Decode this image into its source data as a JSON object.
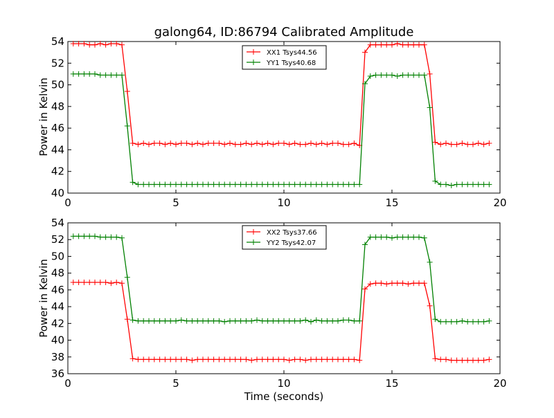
{
  "title": "galong64, ID:86794 Calibrated Amplitude",
  "colors": {
    "xx": "#ff0000",
    "yy": "#008000",
    "axes": "#000000"
  },
  "chart_data": [
    {
      "type": "line",
      "title": "galong64, ID:86794 Calibrated Amplitude",
      "xlabel": "",
      "ylabel": "Power in Kelvin",
      "xlim": [
        0,
        20
      ],
      "ylim": [
        40,
        54
      ],
      "xticks": [
        "0",
        "5",
        "10",
        "15",
        "20"
      ],
      "yticks": [
        "40",
        "42",
        "44",
        "46",
        "48",
        "50",
        "52",
        "54"
      ],
      "grid": false,
      "legend": "top-center",
      "x": [
        0.25,
        0.5,
        0.75,
        1.0,
        1.25,
        1.5,
        1.75,
        2.0,
        2.25,
        2.5,
        2.75,
        3.0,
        3.25,
        3.5,
        3.75,
        4.0,
        4.25,
        4.5,
        4.75,
        5.0,
        5.25,
        5.5,
        5.75,
        6.0,
        6.25,
        6.5,
        6.75,
        7.0,
        7.25,
        7.5,
        7.75,
        8.0,
        8.25,
        8.5,
        8.75,
        9.0,
        9.25,
        9.5,
        9.75,
        10.0,
        10.25,
        10.5,
        10.75,
        11.0,
        11.25,
        11.5,
        11.75,
        12.0,
        12.25,
        12.5,
        12.75,
        13.0,
        13.25,
        13.5,
        13.75,
        14.0,
        14.25,
        14.5,
        14.75,
        15.0,
        15.25,
        15.5,
        15.75,
        16.0,
        16.25,
        16.5,
        16.75,
        17.0,
        17.25,
        17.5,
        17.75,
        18.0,
        18.25,
        18.5,
        18.75,
        19.0,
        19.25,
        19.5
      ],
      "series": [
        {
          "name": "XX1 Tsys44.56",
          "color": "#ff0000",
          "values": [
            53.8,
            53.8,
            53.8,
            53.7,
            53.7,
            53.8,
            53.7,
            53.8,
            53.8,
            53.7,
            49.4,
            44.6,
            44.5,
            44.6,
            44.5,
            44.6,
            44.6,
            44.5,
            44.6,
            44.5,
            44.6,
            44.6,
            44.5,
            44.6,
            44.5,
            44.6,
            44.6,
            44.6,
            44.5,
            44.6,
            44.5,
            44.5,
            44.6,
            44.5,
            44.6,
            44.5,
            44.6,
            44.5,
            44.6,
            44.6,
            44.5,
            44.6,
            44.5,
            44.5,
            44.6,
            44.5,
            44.6,
            44.5,
            44.6,
            44.6,
            44.5,
            44.5,
            44.6,
            44.4,
            53.0,
            53.7,
            53.7,
            53.7,
            53.7,
            53.7,
            53.8,
            53.7,
            53.7,
            53.7,
            53.7,
            53.7,
            51.0,
            44.7,
            44.5,
            44.6,
            44.5,
            44.5,
            44.6,
            44.5,
            44.5,
            44.6,
            44.5,
            44.6
          ]
        },
        {
          "name": "YY1 Tsys40.68",
          "color": "#008000",
          "values": [
            51.0,
            51.0,
            51.0,
            51.0,
            51.0,
            50.9,
            50.9,
            50.9,
            50.9,
            50.9,
            46.2,
            41.0,
            40.8,
            40.8,
            40.8,
            40.8,
            40.8,
            40.8,
            40.8,
            40.8,
            40.8,
            40.8,
            40.8,
            40.8,
            40.8,
            40.8,
            40.8,
            40.8,
            40.8,
            40.8,
            40.8,
            40.8,
            40.8,
            40.8,
            40.8,
            40.8,
            40.8,
            40.8,
            40.8,
            40.8,
            40.8,
            40.8,
            40.8,
            40.8,
            40.8,
            40.8,
            40.8,
            40.8,
            40.8,
            40.8,
            40.8,
            40.8,
            40.8,
            40.8,
            50.1,
            50.8,
            50.9,
            50.9,
            50.9,
            50.9,
            50.8,
            50.9,
            50.9,
            50.9,
            50.9,
            50.9,
            47.9,
            41.1,
            40.8,
            40.8,
            40.7,
            40.8,
            40.8,
            40.8,
            40.8,
            40.8,
            40.8,
            40.8
          ]
        }
      ]
    },
    {
      "type": "line",
      "title": "",
      "xlabel": "Time (seconds)",
      "ylabel": "Power in Kelvin",
      "xlim": [
        0,
        20
      ],
      "ylim": [
        36,
        54
      ],
      "xticks": [
        "0",
        "5",
        "10",
        "15",
        "20"
      ],
      "yticks": [
        "36",
        "38",
        "40",
        "42",
        "44",
        "46",
        "48",
        "50",
        "52",
        "54"
      ],
      "grid": false,
      "legend": "top-center",
      "x": [
        0.25,
        0.5,
        0.75,
        1.0,
        1.25,
        1.5,
        1.75,
        2.0,
        2.25,
        2.5,
        2.75,
        3.0,
        3.25,
        3.5,
        3.75,
        4.0,
        4.25,
        4.5,
        4.75,
        5.0,
        5.25,
        5.5,
        5.75,
        6.0,
        6.25,
        6.5,
        6.75,
        7.0,
        7.25,
        7.5,
        7.75,
        8.0,
        8.25,
        8.5,
        8.75,
        9.0,
        9.25,
        9.5,
        9.75,
        10.0,
        10.25,
        10.5,
        10.75,
        11.0,
        11.25,
        11.5,
        11.75,
        12.0,
        12.25,
        12.5,
        12.75,
        13.0,
        13.25,
        13.5,
        13.75,
        14.0,
        14.25,
        14.5,
        14.75,
        15.0,
        15.25,
        15.5,
        15.75,
        16.0,
        16.25,
        16.5,
        16.75,
        17.0,
        17.25,
        17.5,
        17.75,
        18.0,
        18.25,
        18.5,
        18.75,
        19.0,
        19.25,
        19.5
      ],
      "series": [
        {
          "name": "XX2 Tsys37.66",
          "color": "#ff0000",
          "values": [
            46.9,
            46.9,
            46.9,
            46.9,
            46.9,
            46.9,
            46.9,
            46.8,
            46.9,
            46.8,
            42.5,
            37.8,
            37.7,
            37.7,
            37.7,
            37.7,
            37.7,
            37.7,
            37.7,
            37.7,
            37.7,
            37.7,
            37.6,
            37.7,
            37.7,
            37.7,
            37.7,
            37.7,
            37.7,
            37.7,
            37.7,
            37.7,
            37.7,
            37.6,
            37.7,
            37.7,
            37.7,
            37.7,
            37.7,
            37.7,
            37.6,
            37.7,
            37.7,
            37.6,
            37.7,
            37.7,
            37.7,
            37.7,
            37.7,
            37.7,
            37.7,
            37.7,
            37.7,
            37.6,
            46.1,
            46.7,
            46.8,
            46.8,
            46.7,
            46.8,
            46.8,
            46.8,
            46.7,
            46.8,
            46.8,
            46.8,
            44.1,
            37.8,
            37.7,
            37.7,
            37.6,
            37.6,
            37.6,
            37.6,
            37.6,
            37.6,
            37.6,
            37.7
          ]
        },
        {
          "name": "YY2 Tsys42.07",
          "color": "#008000",
          "values": [
            52.4,
            52.4,
            52.4,
            52.4,
            52.4,
            52.3,
            52.3,
            52.3,
            52.3,
            52.2,
            47.5,
            42.4,
            42.3,
            42.3,
            42.3,
            42.3,
            42.3,
            42.3,
            42.3,
            42.3,
            42.4,
            42.3,
            42.3,
            42.3,
            42.3,
            42.3,
            42.3,
            42.3,
            42.2,
            42.3,
            42.3,
            42.3,
            42.3,
            42.3,
            42.4,
            42.3,
            42.3,
            42.3,
            42.3,
            42.3,
            42.3,
            42.3,
            42.3,
            42.4,
            42.2,
            42.4,
            42.3,
            42.3,
            42.3,
            42.3,
            42.4,
            42.4,
            42.3,
            42.3,
            51.4,
            52.3,
            52.3,
            52.3,
            52.3,
            52.2,
            52.3,
            52.3,
            52.3,
            52.3,
            52.3,
            52.2,
            49.3,
            42.5,
            42.2,
            42.2,
            42.2,
            42.2,
            42.3,
            42.2,
            42.2,
            42.2,
            42.2,
            42.3
          ]
        }
      ]
    }
  ]
}
